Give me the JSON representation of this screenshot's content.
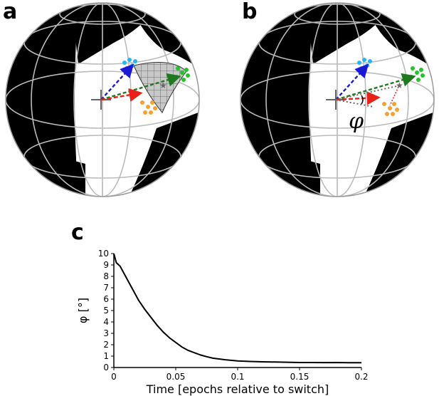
{
  "panels": {
    "a": {
      "letter": "a"
    },
    "b": {
      "letter": "b",
      "angle_symbol": "φ"
    },
    "c": {
      "letter": "c"
    }
  },
  "colors": {
    "blue_cluster": "#29b6f0",
    "green_cluster": "#22c42a",
    "orange_cluster": "#f5a030",
    "blue_arrow": "#1a1ad6",
    "green_arrow": "#1f7a1f",
    "red_arrow": "#e8221a",
    "grey_marker": "#666666"
  },
  "chart_data": {
    "type": "line",
    "title": "",
    "xlabel": "Time [epochs relative to switch]",
    "ylabel": "φ [°]",
    "xlim": [
      0,
      0.2
    ],
    "ylim": [
      0,
      10
    ],
    "xticks": [
      0,
      0.05,
      0.1,
      0.15,
      0.2
    ],
    "xtick_labels": [
      "0",
      "0.05",
      "0.1",
      "0.15",
      "0.2"
    ],
    "yticks": [
      0,
      1,
      2,
      3,
      4,
      5,
      6,
      7,
      8,
      9,
      10
    ],
    "ytick_labels": [
      "0",
      "1",
      "2",
      "3",
      "4",
      "5",
      "6",
      "7",
      "8",
      "9",
      "10"
    ],
    "grid": false,
    "series": [
      {
        "x": [
          0,
          0.002,
          0.005,
          0.01,
          0.015,
          0.02,
          0.025,
          0.03,
          0.035,
          0.04,
          0.045,
          0.05,
          0.055,
          0.06,
          0.065,
          0.07,
          0.075,
          0.08,
          0.09,
          0.1,
          0.11,
          0.12,
          0.13,
          0.14,
          0.15,
          0.16,
          0.17,
          0.18,
          0.19,
          0.2
        ],
        "y": [
          10.0,
          9.2,
          8.9,
          7.9,
          6.9,
          5.9,
          5.1,
          4.4,
          3.7,
          3.1,
          2.6,
          2.2,
          1.8,
          1.5,
          1.3,
          1.1,
          0.95,
          0.82,
          0.68,
          0.58,
          0.53,
          0.5,
          0.48,
          0.46,
          0.44,
          0.44,
          0.43,
          0.44,
          0.42,
          0.42
        ]
      }
    ]
  }
}
